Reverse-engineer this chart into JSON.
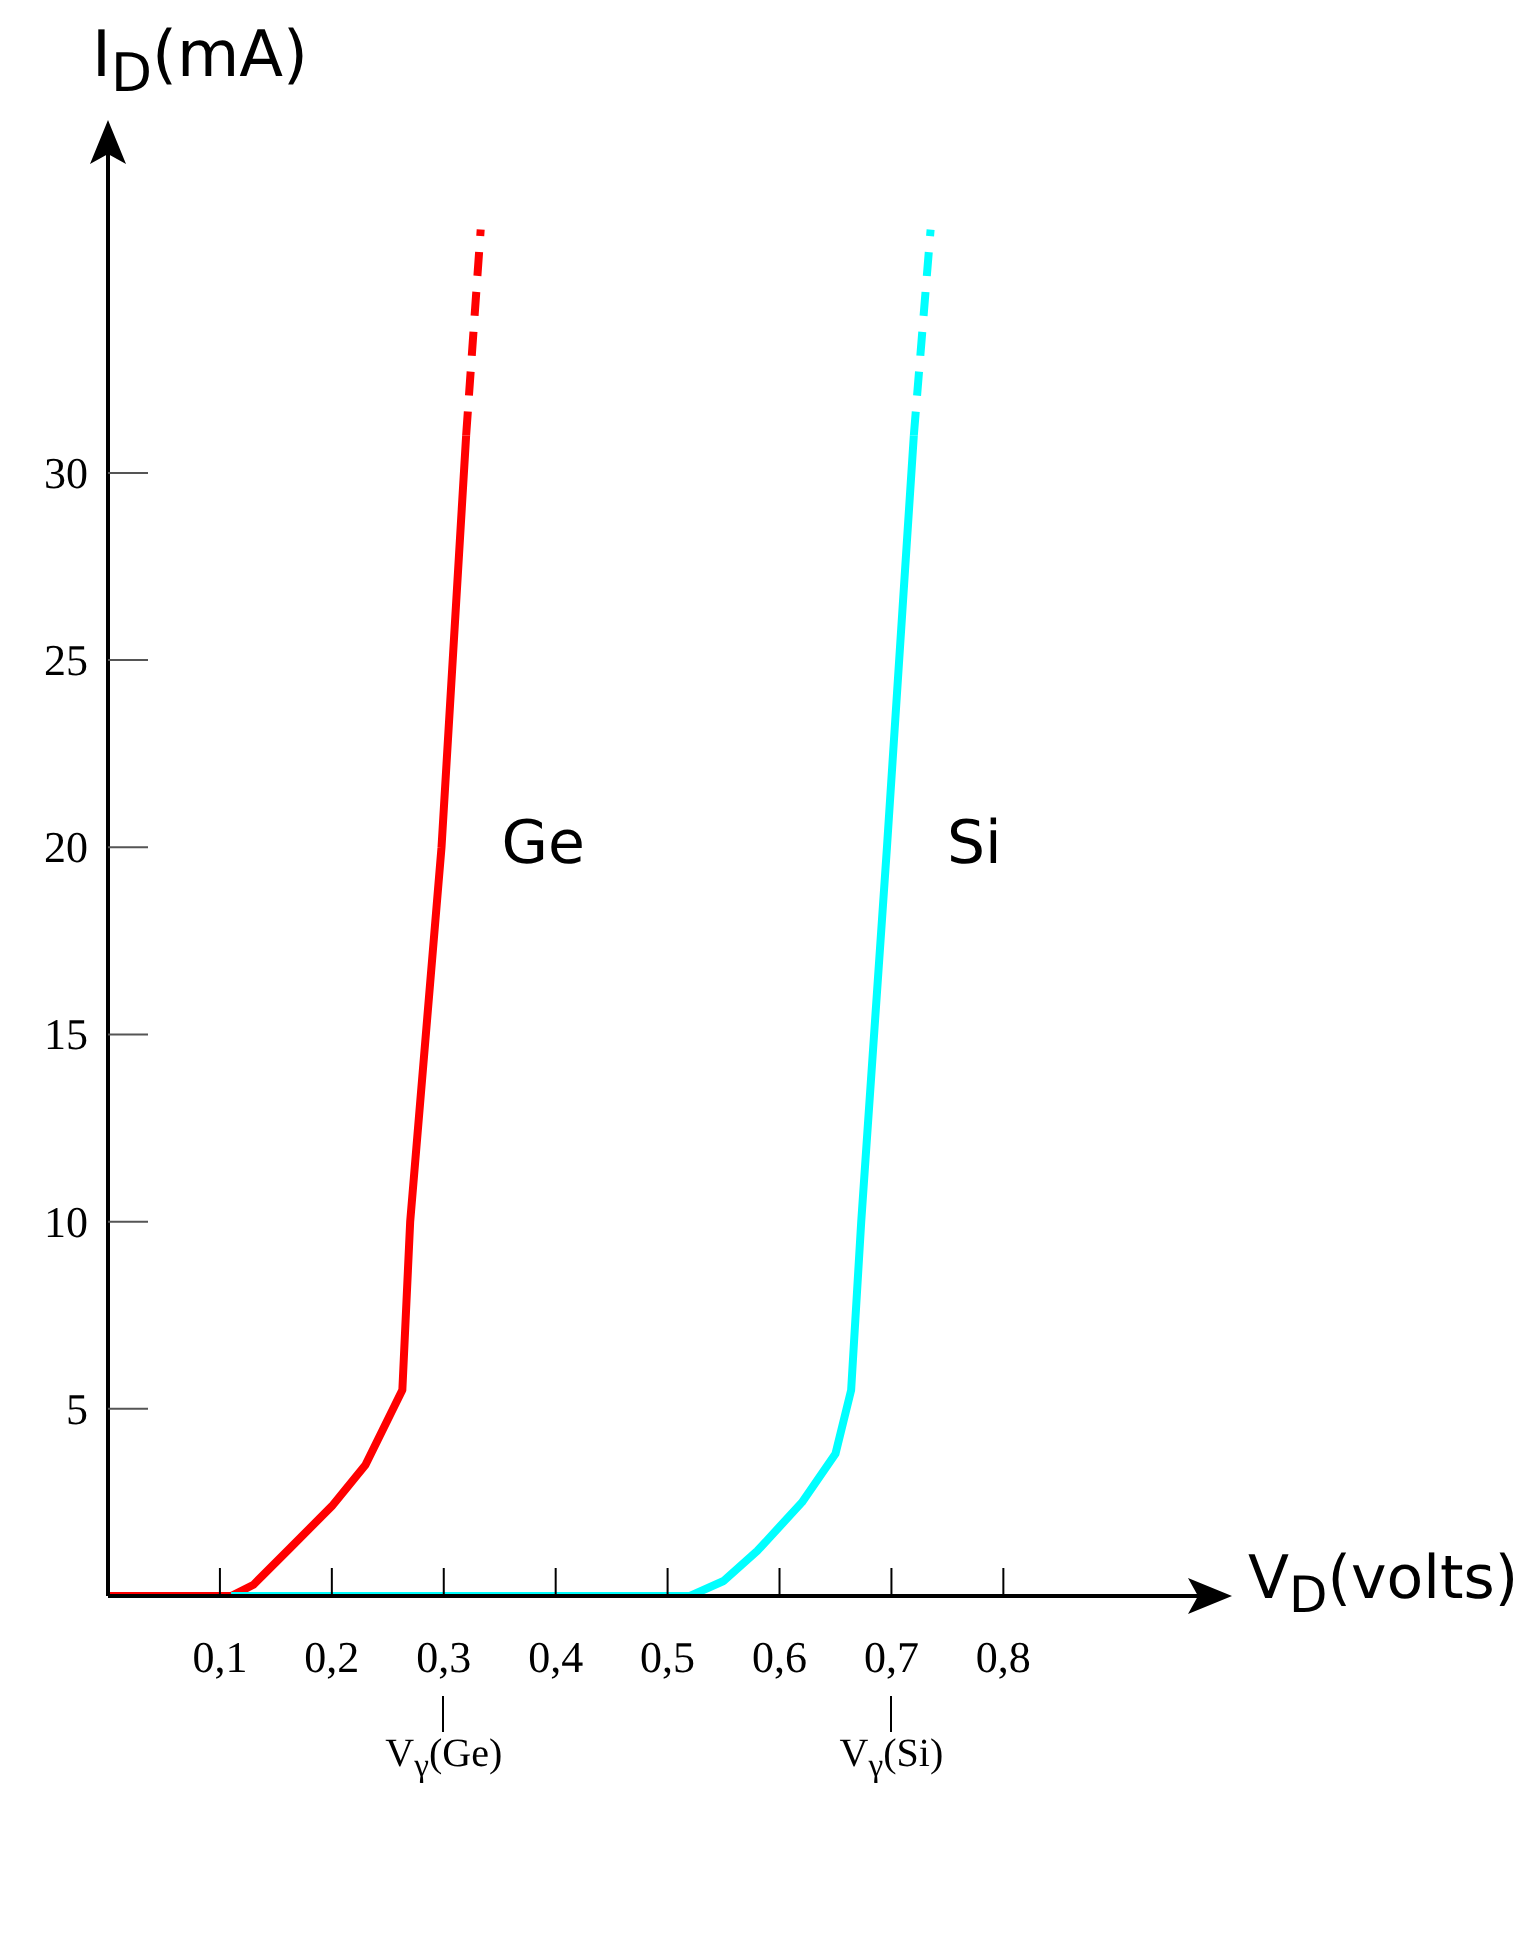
{
  "chart_data": {
    "type": "line",
    "xlabel": "V$_{D}$(volts)",
    "ylabel": "I$_{D}$(mA)",
    "xlim": [
      0,
      0.99
    ],
    "ylim": [
      0,
      39
    ],
    "xticks": [
      {
        "value": 0.1,
        "label": "0,1"
      },
      {
        "value": 0.2,
        "label": "0,2"
      },
      {
        "value": 0.3,
        "label": "0,3"
      },
      {
        "value": 0.4,
        "label": "0,4"
      },
      {
        "value": 0.5,
        "label": "0,5"
      },
      {
        "value": 0.6,
        "label": "0,6"
      },
      {
        "value": 0.7,
        "label": "0,7"
      },
      {
        "value": 0.8,
        "label": "0,8"
      }
    ],
    "yticks": [
      5,
      10,
      15,
      20,
      25,
      30
    ],
    "marker": "none",
    "series": [
      {
        "name": "Ge",
        "color": "#ff0000",
        "line_style": "solid",
        "x": [
          0,
          0.11,
          0.13,
          0.16,
          0.2,
          0.23,
          0.263,
          0.27,
          0.298,
          0.32
        ],
        "values": [
          0,
          0,
          0.3,
          1.2,
          2.4,
          3.5,
          5.5,
          10,
          20,
          31
        ]
      },
      {
        "color": "#ff0000",
        "line_style": "dashed",
        "x": [
          0.32,
          0.333
        ],
        "values": [
          31,
          36.5
        ]
      },
      {
        "name": "Si",
        "color": "#00ffff",
        "line_style": "solid",
        "x": [
          0.11,
          0.52,
          0.55,
          0.58,
          0.62,
          0.65,
          0.664,
          0.673,
          0.696,
          0.72
        ],
        "values": [
          0,
          0,
          0.4,
          1.2,
          2.5,
          3.8,
          5.5,
          10,
          20,
          31
        ]
      },
      {
        "color": "#00ffff",
        "line_style": "dashed",
        "x": [
          0.72,
          0.735
        ],
        "values": [
          31,
          36.5
        ]
      }
    ],
    "ref_lines": [
      {
        "axis": "x",
        "value": 0.3,
        "label": "V$_{γ}$(Ge)"
      },
      {
        "axis": "x",
        "value": 0.7,
        "label": "V$_{γ}$(Si)"
      }
    ]
  }
}
